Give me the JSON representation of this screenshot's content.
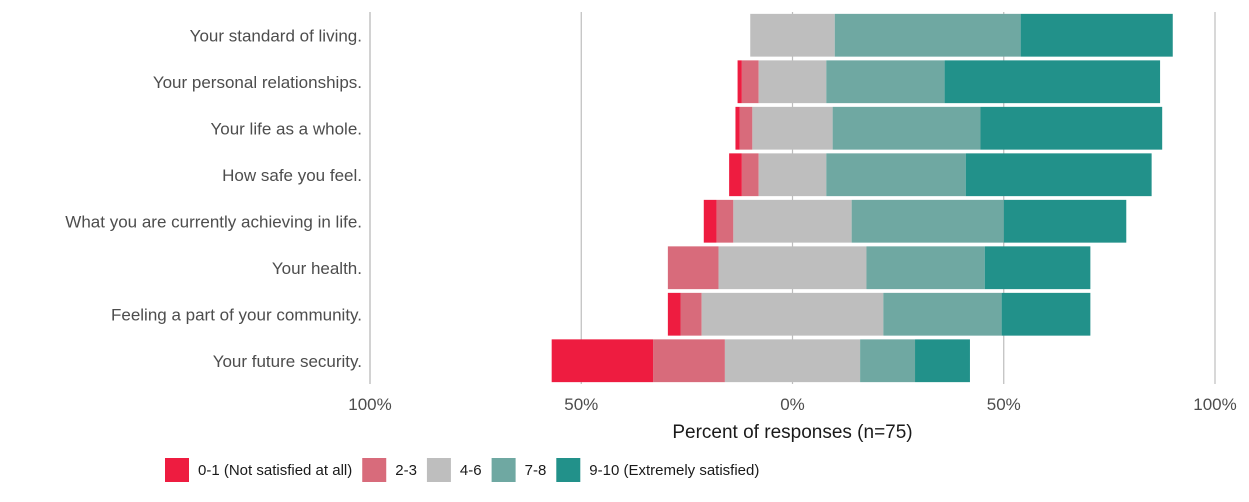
{
  "chart_data": {
    "type": "bar",
    "orientation": "horizontal",
    "stacking": "diverging",
    "categories": [
      "Your standard of living.",
      "Your personal relationships.",
      "Your life as a whole.",
      "How safe you feel.",
      "What you are currently achieving in life.",
      "Your health.",
      "Feeling a part of your community.",
      "Your future security."
    ],
    "series": [
      {
        "name": "0-1 (Not satisfied at all)",
        "color": "#ee1c40",
        "side": "negative",
        "values": [
          0,
          1,
          1,
          3,
          3,
          0,
          3,
          24
        ]
      },
      {
        "name": "2-3",
        "color": "#d86b7b",
        "side": "negative",
        "values": [
          0,
          4,
          3,
          4,
          4,
          12,
          5,
          17
        ]
      },
      {
        "name": "4-6",
        "color": "#bebebe",
        "side": "split",
        "values": [
          20,
          16,
          19,
          16,
          28,
          35,
          43,
          32
        ]
      },
      {
        "name": "7-8",
        "color": "#6fa8a2",
        "side": "positive",
        "values": [
          44,
          28,
          35,
          33,
          36,
          28,
          28,
          13
        ]
      },
      {
        "name": "9-10 (Extremely satisfied)",
        "color": "#22918a",
        "side": "positive",
        "values": [
          36,
          51,
          43,
          44,
          29,
          25,
          21,
          13
        ]
      }
    ],
    "xlim": [
      -100,
      100
    ],
    "x_ticks": [
      -100,
      -50,
      0,
      50,
      100
    ],
    "x_tick_labels": [
      "100%",
      "50%",
      "0%",
      "50%",
      "100%"
    ],
    "xlabel": "Percent of responses (n=75)",
    "grid": "vertical",
    "legend_position": "bottom"
  }
}
